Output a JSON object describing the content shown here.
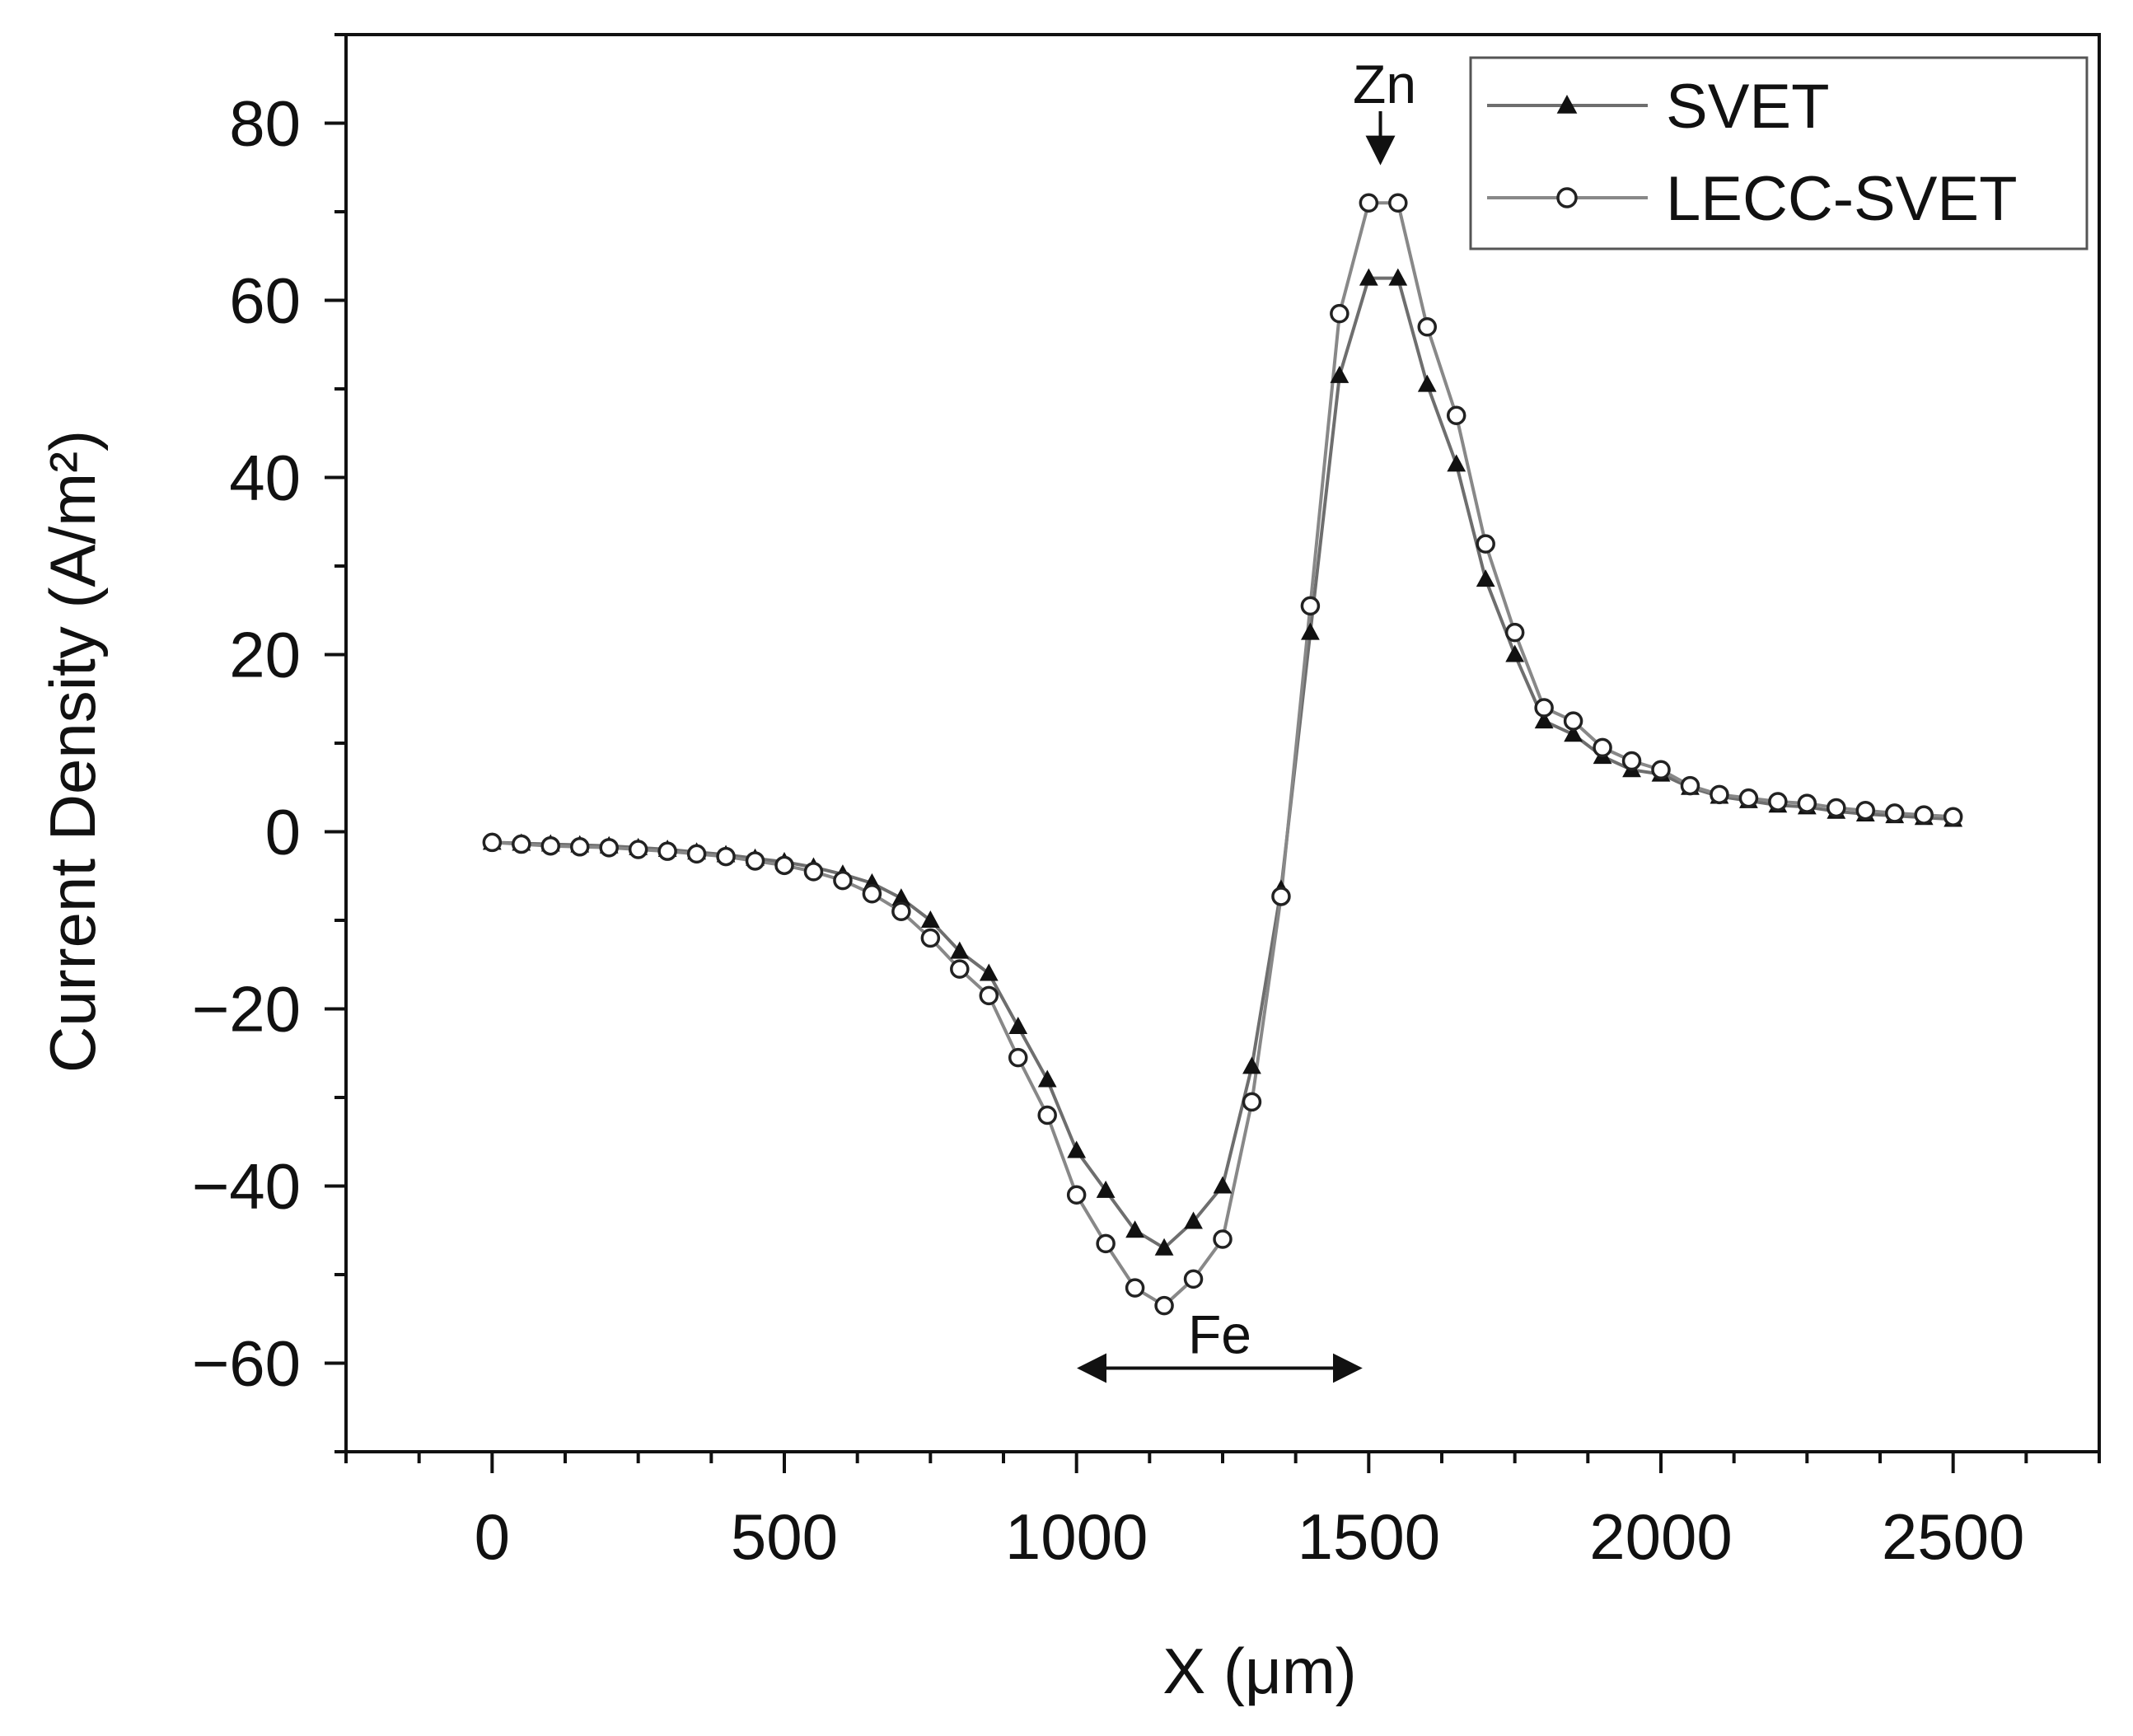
{
  "chart_data": {
    "type": "line",
    "title": "",
    "xlabel": "X (μm)",
    "ylabel": "Current Density (A/m²)",
    "xlim": [
      -250,
      2750
    ],
    "ylim": [
      -70,
      90
    ],
    "x_ticks": [
      0,
      500,
      1000,
      1500,
      2000,
      2500
    ],
    "x_tick_labels": [
      "0",
      "500",
      "1000",
      "1500",
      "2000",
      "2500"
    ],
    "y_ticks": [
      80,
      60,
      40,
      20,
      0,
      -20,
      -40,
      -60
    ],
    "y_tick_labels": [
      "80",
      "60",
      "40",
      "20",
      "0",
      "−20",
      "−40",
      "−60"
    ],
    "x_minor_step": 125,
    "y_minor_step": 10,
    "grid": false,
    "legend_position": "top-right",
    "x": [
      0,
      50,
      100,
      150,
      200,
      250,
      300,
      350,
      400,
      450,
      500,
      550,
      600,
      650,
      700,
      750,
      800,
      850,
      900,
      950,
      1000,
      1050,
      1100,
      1150,
      1200,
      1250,
      1300,
      1350,
      1400,
      1450,
      1500,
      1550,
      1600,
      1650,
      1700,
      1750,
      1800,
      1850,
      1900,
      1950,
      2000,
      2050,
      2100,
      2150,
      2200,
      2250,
      2300,
      2350,
      2400,
      2450,
      2500
    ],
    "series": [
      {
        "name": "SVET",
        "marker": "filled-triangle",
        "color": "#111111",
        "line_color": "#6e6e6e",
        "values": [
          -1.2,
          -1.3,
          -1.4,
          -1.5,
          -1.6,
          -1.8,
          -2.0,
          -2.3,
          -2.6,
          -3.0,
          -3.4,
          -4.0,
          -4.8,
          -5.8,
          -7.5,
          -10,
          -13.5,
          -16,
          -22,
          -28,
          -36,
          -40.5,
          -45,
          -47,
          -44,
          -40,
          -26.5,
          -6.5,
          22.5,
          51.5,
          62.5,
          62.5,
          50.5,
          41.5,
          28.5,
          20,
          12.5,
          11,
          8.5,
          7,
          6.5,
          5,
          4,
          3.5,
          3,
          2.8,
          2.3,
          2.0,
          1.8,
          1.6,
          1.4
        ]
      },
      {
        "name": "LECC-SVET",
        "marker": "open-circle",
        "color": "#222222",
        "line_color": "#888888",
        "values": [
          -1.2,
          -1.4,
          -1.6,
          -1.7,
          -1.8,
          -2.0,
          -2.2,
          -2.5,
          -2.8,
          -3.3,
          -3.8,
          -4.5,
          -5.5,
          -7,
          -9,
          -12,
          -15.5,
          -18.5,
          -25.5,
          -32,
          -41,
          -46.5,
          -51.5,
          -53.5,
          -50.5,
          -46,
          -30.5,
          -7.3,
          25.5,
          58.5,
          71,
          71,
          57,
          47,
          32.5,
          22.5,
          14,
          12.5,
          9.5,
          8,
          7,
          5.2,
          4.2,
          3.8,
          3.4,
          3.2,
          2.7,
          2.4,
          2.1,
          1.9,
          1.7
        ]
      }
    ],
    "annotations": [
      {
        "text": "Zn",
        "type": "down-arrow",
        "at_x": 1520,
        "at_y": 75
      },
      {
        "text": "Fe",
        "type": "double-arrow-span",
        "span_x": [
          1000,
          1490
        ],
        "at_y": -60
      }
    ]
  }
}
